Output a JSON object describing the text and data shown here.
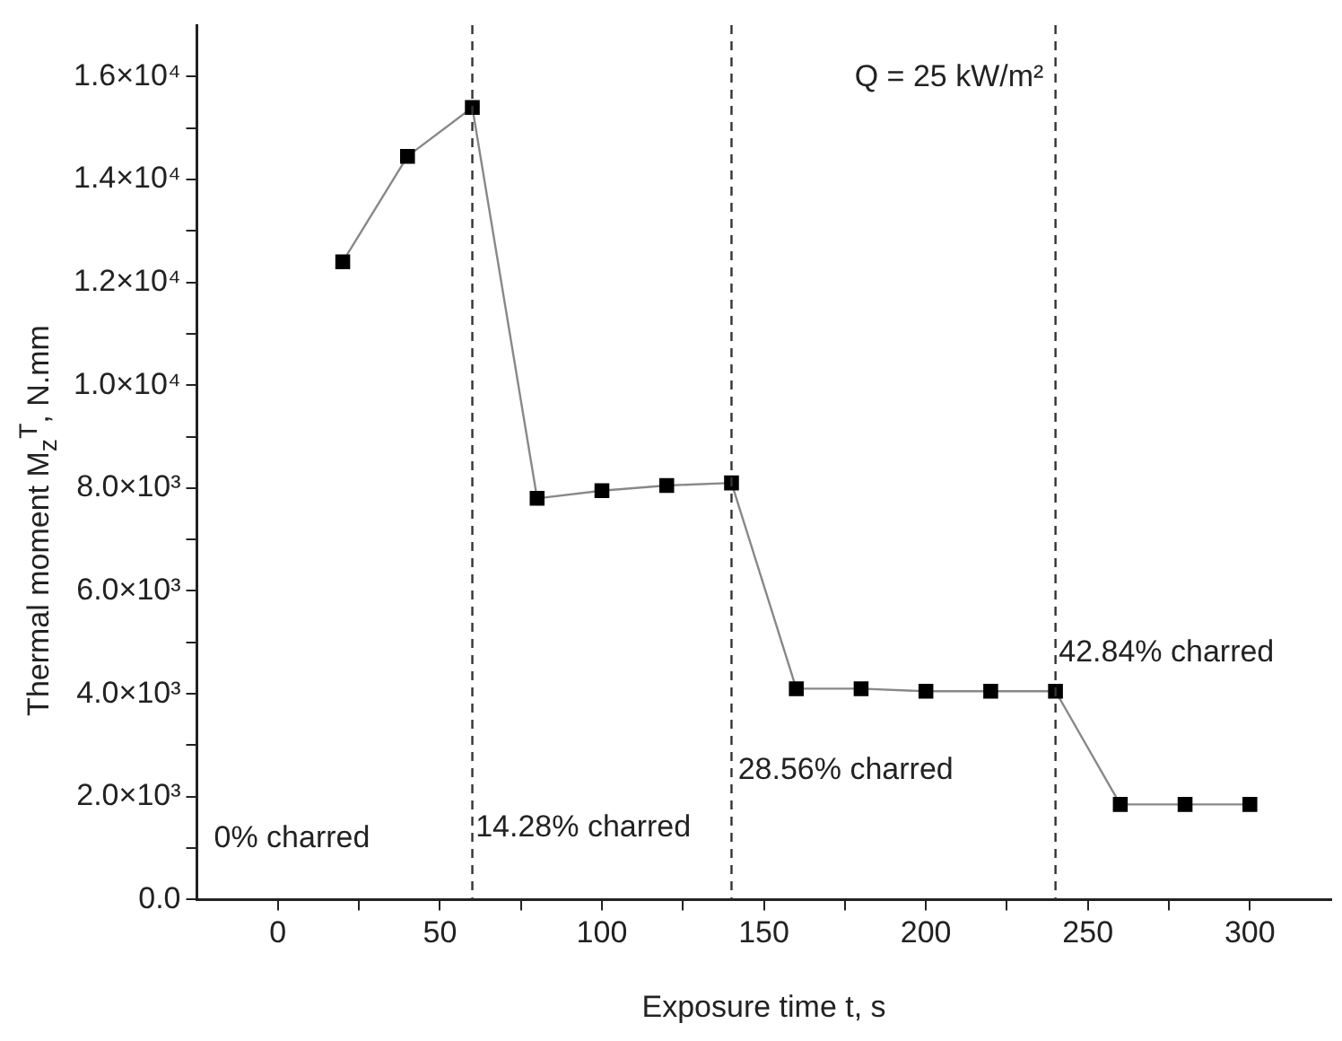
{
  "chart_data": {
    "type": "line",
    "xlabel": "Exposure time t, s",
    "ylabel": "Thermal moment M$_{z}$$^{T}$, N.mm",
    "x": [
      20,
      40,
      60,
      80,
      100,
      120,
      140,
      160,
      180,
      200,
      220,
      240,
      260,
      280,
      300
    ],
    "series": [
      {
        "color": "#000000",
        "values": [
          12400,
          14450,
          15400,
          7800,
          7950,
          8050,
          8100,
          4100,
          4100,
          4050,
          4050,
          4050,
          1850,
          1850,
          1850
        ]
      }
    ],
    "marker": "square",
    "line_style": "solid",
    "grid": false,
    "legend": false,
    "xlim": [
      -25,
      325
    ],
    "xticks": [
      0,
      {
        "value": 25,
        "label": null
      },
      50,
      {
        "value": 75,
        "label": null
      },
      100,
      {
        "value": 125,
        "label": null
      },
      150,
      {
        "value": 175,
        "label": null
      },
      200,
      {
        "value": 225,
        "label": null
      },
      250,
      {
        "value": 275,
        "label": null
      },
      300
    ],
    "ylim": [
      0,
      17000
    ],
    "yticks": [
      {
        "value": 0,
        "label": "0.0"
      },
      {
        "value": 1000,
        "label": null
      },
      {
        "value": 2000,
        "label": "2.0×10³"
      },
      {
        "value": 3000,
        "label": null
      },
      {
        "value": 4000,
        "label": "4.0×10³"
      },
      {
        "value": 5000,
        "label": null
      },
      {
        "value": 6000,
        "label": "6.0×10³"
      },
      {
        "value": 7000,
        "label": null
      },
      {
        "value": 8000,
        "label": "8.0×10³"
      },
      {
        "value": 9000,
        "label": null
      },
      {
        "value": 10000,
        "label": "1.0×10⁴"
      },
      {
        "value": 11000,
        "label": null
      },
      {
        "value": 12000,
        "label": "1.2×10⁴"
      },
      {
        "value": 13000,
        "label": null
      },
      {
        "value": 14000,
        "label": "1.4×10⁴"
      },
      {
        "value": 15000,
        "label": null
      },
      {
        "value": 16000,
        "label": "1.6×10⁴"
      }
    ],
    "ref_lines": [
      {
        "axis": "x",
        "value": 60,
        "line_style": "dashed",
        "color": "#333333"
      },
      {
        "axis": "x",
        "value": 140,
        "line_style": "dashed",
        "color": "#333333"
      },
      {
        "axis": "x",
        "value": 240,
        "line_style": "dashed",
        "color": "#333333"
      }
    ],
    "annotations": [
      "Q = 25 kW/m²",
      "0% charred",
      {
        "text": "14.28% charred",
        "x": 61,
        "y": 1400
      },
      {
        "text": "28.56% charred",
        "x": 142,
        "y": 2500
      },
      {
        "text": "42.84% charred",
        "x": 241,
        "y": 4800
      }
    ]
  }
}
